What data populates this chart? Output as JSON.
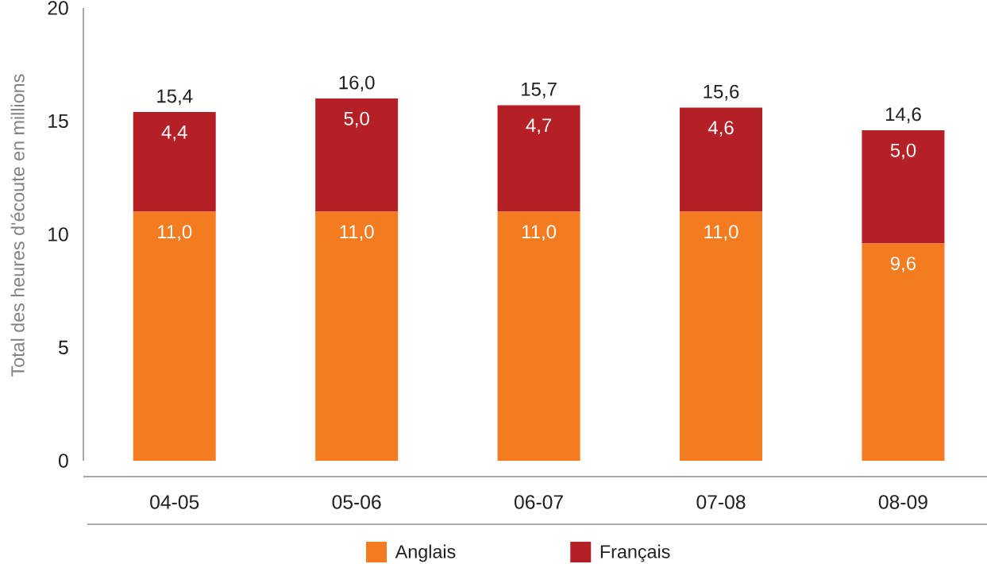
{
  "chart_data": {
    "type": "bar",
    "stacked": true,
    "ylabel": "Total des heures d'écoute en millions",
    "categories": [
      "04-05",
      "05-06",
      "06-07",
      "07-08",
      "08-09"
    ],
    "series": [
      {
        "name": "Anglais",
        "color": "#f47b20",
        "values": [
          11.0,
          11.0,
          11.0,
          11.0,
          9.6
        ],
        "value_labels": [
          "11,0",
          "11,0",
          "11,0",
          "11,0",
          "9,6"
        ]
      },
      {
        "name": "Français",
        "color": "#b51f26",
        "values": [
          4.4,
          5.0,
          4.7,
          4.6,
          5.0
        ],
        "value_labels": [
          "4,4",
          "5,0",
          "4,7",
          "4,6",
          "5,0"
        ]
      }
    ],
    "totals": [
      "15,4",
      "16,0",
      "15,7",
      "15,6",
      "14,6"
    ],
    "ylim": [
      0,
      20
    ],
    "yticks": [
      0,
      5,
      10,
      15,
      20
    ],
    "legend": "bottom"
  }
}
